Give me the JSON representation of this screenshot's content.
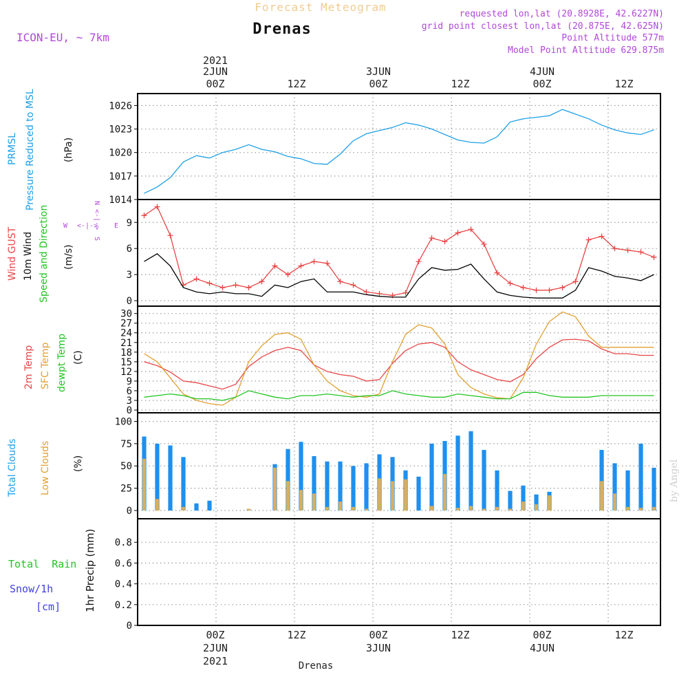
{
  "header": {
    "title": "Forecast Meteogram",
    "location": "Drenas",
    "model": "ICON-EU, ~ 7km",
    "requested": "requested lon,lat (20.8928E, 42.6227N)",
    "gridpoint": "grid point closest lon,lat (20.875E, 42.625N)",
    "point_alt": "Point Altitude 577m",
    "model_alt": "Model Point Altitude 629.875m",
    "footer_location": "Drenas",
    "watermark": "by Angel"
  },
  "time_axis": {
    "top_year": "2021",
    "top_labels": [
      "2JUN",
      "00Z",
      "12Z",
      "3JUN",
      "00Z",
      "12Z",
      "4JUN",
      "00Z",
      "12Z"
    ],
    "bottom_labels": [
      "00Z",
      "2JUN",
      "2021",
      "12Z",
      "00Z",
      "3JUN",
      "12Z",
      "00Z",
      "4JUN",
      "12Z"
    ]
  },
  "labels": {
    "prmsl_1": "PRMSL",
    "prmsl_2": "Pressure Reduced to MSL",
    "prmsl_unit": "(hPa)",
    "wind_gust": "Wind GUST",
    "wind_10m": "10m Wind",
    "wind_sd": "Speed and Direction",
    "wind_unit": "(m/s)",
    "compass_n": "N",
    "compass_s": "S",
    "compass_w": "W",
    "compass_e": "E",
    "compass_ns": "<-|->",
    "compass_we": "<-|->",
    "temp_2m": "2m Temp",
    "temp_sfc": "SFC Temp",
    "temp_dew": "dewpt Temp",
    "temp_unit": "(C)",
    "cloud_total": "Total Clouds",
    "cloud_low": "Low Clouds",
    "cloud_unit": "(%)",
    "precip_rain": "Total  Rain",
    "precip_snow": "Snow/1h",
    "precip_cm": "[cm]",
    "precip_unit": "1hr Precip (mm)"
  },
  "colors": {
    "pressure": "#1ea0e6",
    "gust": "#e84545",
    "wind": "#000000",
    "temp2m": "#e84545",
    "sfc": "#e0a030",
    "dew": "#22c422",
    "cloud_total": "#1e90ee",
    "cloud_low": "#d8b060",
    "purple": "#b048d8",
    "title_orange": "#f0cc90",
    "blue_text": "#4040e0"
  },
  "chart_data": [
    {
      "type": "line",
      "title": "PRMSL Pressure Reduced to MSL",
      "ylabel": "(hPa)",
      "ylim": [
        1014,
        1027
      ],
      "yticks": [
        1014,
        1017,
        1020,
        1023,
        1026
      ],
      "x_hours": [
        -11,
        -9,
        -7,
        -5,
        -3,
        -1,
        1,
        3,
        5,
        7,
        9,
        11,
        13,
        15,
        17,
        19,
        21,
        23,
        25,
        27,
        29,
        31,
        33,
        35,
        37,
        39,
        41,
        43,
        45,
        47,
        49,
        51,
        53,
        55,
        57,
        59,
        61,
        63,
        65,
        67
      ],
      "series": [
        {
          "name": "PRMSL",
          "values": [
            1014.8,
            1015.6,
            1016.8,
            1018.8,
            1019.6,
            1019.3,
            1020.0,
            1020.4,
            1021.0,
            1020.4,
            1020.1,
            1019.5,
            1019.2,
            1018.6,
            1018.5,
            1019.8,
            1021.5,
            1022.4,
            1022.8,
            1023.2,
            1023.8,
            1023.5,
            1023.0,
            1022.3,
            1021.6,
            1021.3,
            1021.2,
            1022.0,
            1023.9,
            1024.3,
            1024.5,
            1024.7,
            1025.5,
            1024.9,
            1024.3,
            1023.5,
            1022.9,
            1022.5,
            1022.3,
            1022.9
          ]
        }
      ]
    },
    {
      "type": "line",
      "title": "Wind GUST / 10m Wind Speed and Direction",
      "ylabel": "(m/s)",
      "ylim": [
        0,
        11
      ],
      "yticks": [
        0,
        3,
        6,
        9
      ],
      "x_hours": [
        -11,
        -9,
        -7,
        -5,
        -3,
        -1,
        1,
        3,
        5,
        7,
        9,
        11,
        13,
        15,
        17,
        19,
        21,
        23,
        25,
        27,
        29,
        31,
        33,
        35,
        37,
        39,
        41,
        43,
        45,
        47,
        49,
        51,
        53,
        55,
        57,
        59,
        61,
        63,
        65,
        67
      ],
      "series": [
        {
          "name": "Wind GUST",
          "values": [
            9.8,
            10.8,
            7.5,
            1.8,
            2.5,
            2.0,
            1.5,
            1.8,
            1.5,
            2.2,
            4.0,
            3.0,
            4.0,
            4.5,
            4.3,
            2.2,
            1.8,
            1.0,
            0.8,
            0.6,
            0.9,
            4.5,
            7.2,
            6.8,
            7.8,
            8.2,
            6.5,
            3.2,
            2.0,
            1.5,
            1.2,
            1.2,
            1.5,
            2.2,
            7.0,
            7.4,
            6.0,
            5.8,
            5.6,
            5.0
          ]
        },
        {
          "name": "10m Wind",
          "values": [
            4.5,
            5.4,
            4.0,
            1.5,
            1.0,
            0.8,
            1.0,
            0.8,
            0.8,
            0.5,
            1.8,
            1.5,
            2.2,
            2.5,
            1.0,
            1.0,
            1.0,
            0.7,
            0.5,
            0.4,
            0.4,
            2.5,
            3.8,
            3.5,
            3.6,
            4.2,
            2.5,
            1.0,
            0.6,
            0.4,
            0.3,
            0.3,
            0.3,
            1.2,
            3.8,
            3.4,
            2.8,
            2.6,
            2.3,
            3.0
          ]
        }
      ]
    },
    {
      "type": "line",
      "title": "2m Temp / SFC Temp / dewpt Temp",
      "ylabel": "(C)",
      "ylim": [
        0,
        31
      ],
      "yticks": [
        0,
        3,
        6,
        9,
        12,
        15,
        18,
        21,
        24,
        27,
        30
      ],
      "x_hours": [
        -11,
        -9,
        -7,
        -5,
        -3,
        -1,
        1,
        3,
        5,
        7,
        9,
        11,
        13,
        15,
        17,
        19,
        21,
        23,
        25,
        27,
        29,
        31,
        33,
        35,
        37,
        39,
        41,
        43,
        45,
        47,
        49,
        51,
        53,
        55,
        57,
        59,
        61,
        63,
        65,
        67
      ],
      "series": [
        {
          "name": "2m Temp",
          "values": [
            15.0,
            13.8,
            11.8,
            9.0,
            8.5,
            7.5,
            6.5,
            8.0,
            13.5,
            16.5,
            18.5,
            19.5,
            18.5,
            14.0,
            12.0,
            11.0,
            10.5,
            9.0,
            9.5,
            14.5,
            18.5,
            20.5,
            21.0,
            19.5,
            15.0,
            12.5,
            11.0,
            9.5,
            8.8,
            11.0,
            16.0,
            19.5,
            21.8,
            22.0,
            21.5,
            19.0,
            17.5,
            17.5,
            17.0,
            17.0
          ]
        },
        {
          "name": "SFC Temp",
          "values": [
            17.5,
            15.0,
            10.0,
            5.0,
            3.0,
            2.0,
            1.5,
            4.0,
            15.0,
            20.0,
            23.5,
            24.0,
            22.0,
            14.0,
            9.0,
            6.0,
            4.5,
            4.0,
            5.0,
            15.0,
            23.5,
            26.5,
            25.5,
            20.5,
            11.0,
            7.0,
            5.0,
            3.8,
            3.5,
            10.0,
            20.5,
            27.5,
            30.5,
            29.0,
            23.0,
            19.5,
            19.5,
            19.5,
            19.5,
            19.5
          ]
        },
        {
          "name": "dewpt Temp",
          "values": [
            4.0,
            4.5,
            5.0,
            4.5,
            3.5,
            3.5,
            3.0,
            4.0,
            6.0,
            5.0,
            4.0,
            3.5,
            4.5,
            4.5,
            5.0,
            4.5,
            4.0,
            4.5,
            4.5,
            6.0,
            5.0,
            4.5,
            4.0,
            4.0,
            5.0,
            4.5,
            4.0,
            3.5,
            3.5,
            5.5,
            5.5,
            4.5,
            4.0,
            4.0,
            4.0,
            4.5,
            4.5,
            4.5,
            4.5,
            4.5
          ]
        }
      ]
    },
    {
      "type": "bar",
      "title": "Total Clouds / Low Clouds",
      "ylabel": "(%)",
      "ylim": [
        0,
        105
      ],
      "yticks": [
        0,
        25,
        50,
        75,
        100
      ],
      "x_hours": [
        -11,
        -9,
        -7,
        -5,
        -3,
        -1,
        1,
        3,
        5,
        7,
        9,
        11,
        13,
        15,
        17,
        19,
        21,
        23,
        25,
        27,
        29,
        31,
        33,
        35,
        37,
        39,
        41,
        43,
        45,
        47,
        49,
        51,
        53,
        55,
        57,
        59,
        61,
        63,
        65,
        67
      ],
      "series": [
        {
          "name": "Total Clouds",
          "values": [
            83,
            75,
            73,
            60,
            8,
            11,
            0,
            0,
            1,
            0,
            52,
            69,
            77,
            61,
            55,
            55,
            50,
            53,
            63,
            60,
            45,
            38,
            75,
            78,
            84,
            89,
            68,
            45,
            22,
            28,
            18,
            21,
            0,
            0,
            0,
            68,
            53,
            45,
            75,
            48
          ]
        },
        {
          "name": "Low Clouds",
          "values": [
            58,
            13,
            0,
            4,
            0,
            0,
            0,
            0,
            2,
            0,
            48,
            33,
            23,
            19,
            4,
            10,
            4,
            2,
            36,
            33,
            35,
            0,
            5,
            41,
            3,
            5,
            2,
            4,
            2,
            10,
            7,
            17,
            0,
            0,
            0,
            33,
            19,
            4,
            3,
            4
          ]
        }
      ]
    },
    {
      "type": "line",
      "title": "1hr Precip",
      "ylabel": "1hr Precip (mm)",
      "ylim": [
        0,
        1
      ],
      "yticks": [
        0,
        0.2,
        0.4,
        0.6,
        0.8
      ],
      "x_hours": [
        -11,
        67
      ],
      "series": [
        {
          "name": "Total Rain",
          "values": [
            0,
            0
          ]
        }
      ]
    }
  ]
}
